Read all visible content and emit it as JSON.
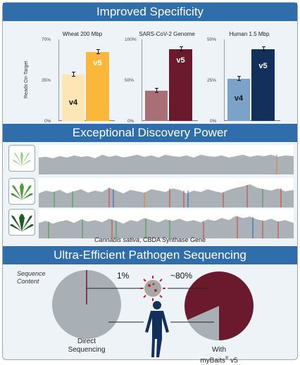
{
  "sections": {
    "specificity": {
      "title": "Improved Specificity",
      "ylabel": "Reads On-Target"
    },
    "discovery": {
      "title": "Exceptional Discovery Power",
      "caption_species": "Cannabis sativa",
      "caption_rest": ", CBDA Synthase Gene"
    },
    "pathogen": {
      "title": "Ultra-Efficient Pathogen Sequencing",
      "sequence_content": "Sequence\nContent",
      "pct_direct": "1%",
      "pct_mybaits": "~80%",
      "label_direct": "Direct\nSequencing",
      "label_mybaits_pre": "With\nmyBaits",
      "label_mybaits_reg": "®",
      "label_mybaits_post": " v5"
    }
  },
  "colors": {
    "band": "#2f6eaa",
    "wheat_v4": "#fde6b3",
    "wheat_v5": "#fbb73a",
    "sars_v4": "#a86f76",
    "sars_v5": "#6b1a2e",
    "human_v4": "#7ba3c9",
    "human_v5": "#13305a",
    "coverage": "#aab1b7",
    "pie_gray": "#a9b0b5",
    "pie_red": "#6b1a2e"
  },
  "chart_data": [
    {
      "type": "bar",
      "title": "Wheat 200 Mbp",
      "categories": [
        "v4",
        "v5"
      ],
      "values": [
        40,
        59
      ],
      "ylim": [
        0,
        70
      ],
      "yticks": [
        "0%",
        "35%",
        "70%"
      ],
      "ylabel": "Reads On-Target"
    },
    {
      "type": "bar",
      "title": "SARS-CoV-2 Genome",
      "categories": [
        "v4",
        "v5"
      ],
      "values": [
        37,
        88
      ],
      "ylim": [
        0,
        100
      ],
      "yticks": [
        "0%",
        "50%",
        "100%"
      ],
      "ylabel": ""
    },
    {
      "type": "bar",
      "title": "Human 1.5 Mbp",
      "categories": [
        "v4",
        "v5"
      ],
      "values": [
        26,
        44
      ],
      "ylim": [
        0,
        50
      ],
      "yticks": [
        "0%",
        "25%",
        "50%"
      ],
      "ylabel": ""
    },
    {
      "type": "pie",
      "title": "Direct Sequencing",
      "values": [
        1,
        99
      ]
    },
    {
      "type": "pie",
      "title": "With myBaits® v5",
      "values": [
        80,
        20
      ]
    }
  ]
}
